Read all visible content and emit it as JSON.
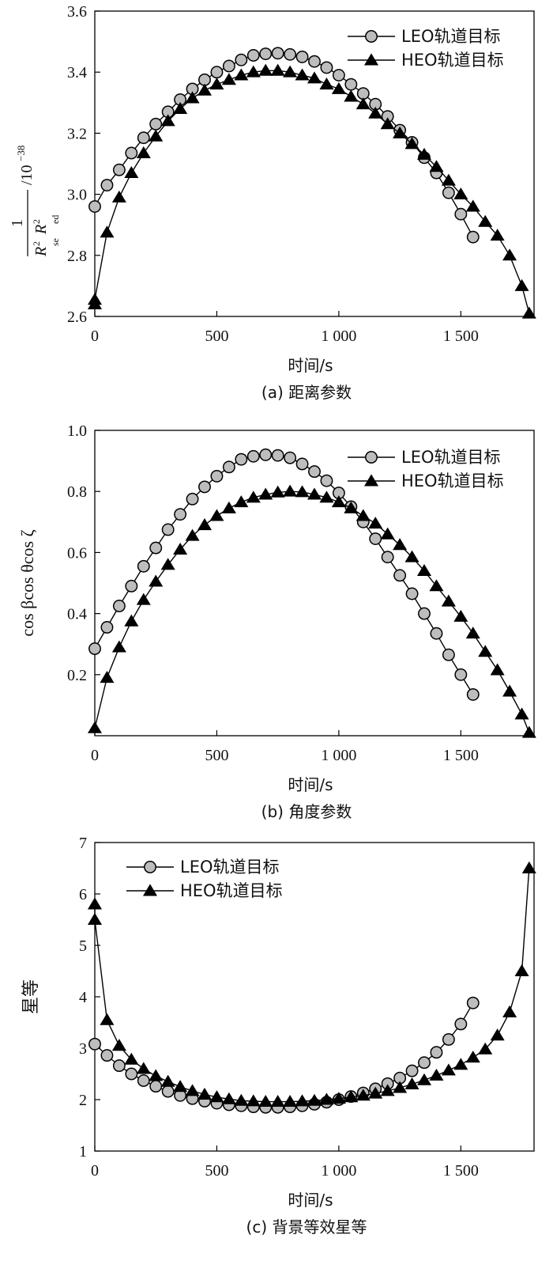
{
  "chart_data": [
    {
      "type": "line",
      "caption": "(a) 距离参数",
      "xlabel": "时间/s",
      "ylabel": {
        "numerator": "1",
        "r1": "R",
        "r1_sup": "2",
        "r1_sub": "se",
        "r2": "R",
        "r2_sup": "2",
        "r2_sub": "ed",
        "unit": "/10",
        "unit_exp": "−38"
      },
      "xlim": [
        0,
        1800
      ],
      "ylim": [
        2.6,
        3.6
      ],
      "xticks": [
        0,
        500,
        1000,
        1500
      ],
      "xtick_labels": [
        "0",
        "500",
        "1 000",
        "1 500"
      ],
      "yticks": [
        2.6,
        2.8,
        3.0,
        3.2,
        3.4,
        3.6
      ],
      "ytick_labels": [
        "2.6",
        "2.8",
        "3.0",
        "3.2",
        "3.4",
        "3.6"
      ],
      "legend_position": "top-right",
      "series": [
        {
          "name": "LEO轨道目标",
          "marker": "circle",
          "x": [
            0,
            50,
            100,
            150,
            200,
            250,
            300,
            350,
            400,
            450,
            500,
            550,
            600,
            650,
            700,
            750,
            800,
            850,
            900,
            950,
            1000,
            1050,
            1100,
            1150,
            1200,
            1250,
            1300,
            1350,
            1400,
            1450,
            1500,
            1550
          ],
          "y": [
            2.96,
            3.03,
            3.08,
            3.135,
            3.185,
            3.23,
            3.27,
            3.31,
            3.345,
            3.375,
            3.4,
            3.42,
            3.44,
            3.455,
            3.46,
            3.462,
            3.458,
            3.45,
            3.435,
            3.415,
            3.39,
            3.36,
            3.33,
            3.295,
            3.255,
            3.21,
            3.17,
            3.12,
            3.07,
            3.005,
            2.935,
            2.86
          ]
        },
        {
          "name": "HEO轨道目标",
          "marker": "triangle",
          "x": [
            0,
            0.01,
            50,
            100,
            150,
            200,
            250,
            300,
            350,
            400,
            450,
            500,
            550,
            600,
            650,
            700,
            750,
            800,
            850,
            900,
            950,
            1000,
            1050,
            1100,
            1150,
            1200,
            1250,
            1300,
            1350,
            1400,
            1450,
            1500,
            1550,
            1600,
            1650,
            1700,
            1750,
            1780
          ],
          "y": [
            2.64,
            2.655,
            2.875,
            2.99,
            3.07,
            3.135,
            3.19,
            3.24,
            3.28,
            3.315,
            3.34,
            3.36,
            3.375,
            3.39,
            3.4,
            3.405,
            3.405,
            3.4,
            3.39,
            3.38,
            3.36,
            3.345,
            3.32,
            3.295,
            3.265,
            3.23,
            3.2,
            3.165,
            3.13,
            3.09,
            3.045,
            3.0,
            2.96,
            2.91,
            2.865,
            2.8,
            2.7,
            2.61
          ]
        }
      ]
    },
    {
      "type": "line",
      "caption": "(b) 角度参数",
      "xlabel": "时间/s",
      "ylabel": {
        "text": "cos βcos θcos ζ"
      },
      "xlim": [
        0,
        1800
      ],
      "ylim": [
        0,
        1.0
      ],
      "xticks": [
        0,
        500,
        1000,
        1500
      ],
      "xtick_labels": [
        "0",
        "500",
        "1 000",
        "1 500"
      ],
      "yticks": [
        0.2,
        0.4,
        0.6,
        0.8,
        1.0
      ],
      "ytick_labels": [
        "0.2",
        "0.4",
        "0.6",
        "0.8",
        "1.0"
      ],
      "legend_position": "top-right",
      "series": [
        {
          "name": "LEO轨道目标",
          "marker": "circle",
          "x": [
            0,
            50,
            100,
            150,
            200,
            250,
            300,
            350,
            400,
            450,
            500,
            550,
            600,
            650,
            700,
            750,
            800,
            850,
            900,
            950,
            1000,
            1050,
            1100,
            1150,
            1200,
            1250,
            1300,
            1350,
            1400,
            1450,
            1500,
            1550
          ],
          "y": [
            0.285,
            0.355,
            0.425,
            0.49,
            0.555,
            0.615,
            0.675,
            0.725,
            0.775,
            0.815,
            0.85,
            0.88,
            0.905,
            0.915,
            0.92,
            0.918,
            0.91,
            0.89,
            0.865,
            0.835,
            0.795,
            0.75,
            0.7,
            0.645,
            0.585,
            0.525,
            0.465,
            0.4,
            0.335,
            0.265,
            0.2,
            0.135
          ]
        },
        {
          "name": "HEO轨道目标",
          "marker": "triangle",
          "x": [
            0,
            50,
            100,
            150,
            200,
            250,
            300,
            350,
            400,
            450,
            500,
            550,
            600,
            650,
            700,
            750,
            800,
            850,
            900,
            950,
            1000,
            1050,
            1100,
            1150,
            1200,
            1250,
            1300,
            1350,
            1400,
            1450,
            1500,
            1550,
            1600,
            1650,
            1700,
            1750,
            1780
          ],
          "y": [
            0.025,
            0.19,
            0.29,
            0.375,
            0.445,
            0.505,
            0.56,
            0.61,
            0.655,
            0.69,
            0.72,
            0.745,
            0.765,
            0.78,
            0.79,
            0.797,
            0.8,
            0.798,
            0.79,
            0.78,
            0.765,
            0.745,
            0.72,
            0.695,
            0.66,
            0.625,
            0.585,
            0.54,
            0.49,
            0.44,
            0.39,
            0.335,
            0.275,
            0.215,
            0.145,
            0.07,
            0.01
          ]
        }
      ]
    },
    {
      "type": "line",
      "caption": "(c) 背景等效星等",
      "xlabel": "时间/s",
      "ylabel": {
        "text": "星等"
      },
      "xlim": [
        0,
        1800
      ],
      "ylim": [
        1,
        7
      ],
      "xticks": [
        0,
        500,
        1000,
        1500
      ],
      "xtick_labels": [
        "0",
        "500",
        "1 000",
        "1 500"
      ],
      "yticks": [
        1,
        2,
        3,
        4,
        5,
        6,
        7
      ],
      "ytick_labels": [
        "1",
        "2",
        "3",
        "4",
        "5",
        "6",
        "7"
      ],
      "legend_position": "top-left",
      "series": [
        {
          "name": "LEO轨道目标",
          "marker": "circle",
          "x": [
            0,
            50,
            100,
            150,
            200,
            250,
            300,
            350,
            400,
            450,
            500,
            550,
            600,
            650,
            700,
            750,
            800,
            850,
            900,
            950,
            1000,
            1050,
            1100,
            1150,
            1200,
            1250,
            1300,
            1350,
            1400,
            1450,
            1500,
            1550
          ],
          "y": [
            3.08,
            2.86,
            2.66,
            2.5,
            2.37,
            2.26,
            2.16,
            2.08,
            2.02,
            1.97,
            1.93,
            1.9,
            1.88,
            1.86,
            1.85,
            1.85,
            1.86,
            1.88,
            1.91,
            1.95,
            2.0,
            2.06,
            2.13,
            2.21,
            2.31,
            2.42,
            2.56,
            2.72,
            2.92,
            3.17,
            3.47,
            3.88
          ]
        },
        {
          "name": "HEO轨道目标",
          "marker": "triangle",
          "x": [
            0,
            0.01,
            50,
            100,
            150,
            200,
            250,
            300,
            350,
            400,
            450,
            500,
            550,
            600,
            650,
            700,
            750,
            800,
            850,
            900,
            950,
            1000,
            1050,
            1100,
            1150,
            1200,
            1250,
            1300,
            1350,
            1400,
            1450,
            1500,
            1550,
            1600,
            1650,
            1700,
            1750,
            1780
          ],
          "y": [
            5.8,
            5.5,
            3.55,
            3.05,
            2.78,
            2.6,
            2.46,
            2.35,
            2.25,
            2.17,
            2.1,
            2.05,
            2.01,
            1.98,
            1.97,
            1.96,
            1.96,
            1.96,
            1.97,
            1.98,
            2.0,
            2.02,
            2.05,
            2.08,
            2.12,
            2.17,
            2.23,
            2.3,
            2.38,
            2.47,
            2.57,
            2.68,
            2.82,
            2.98,
            3.25,
            3.7,
            4.5,
            6.5
          ]
        }
      ]
    }
  ]
}
